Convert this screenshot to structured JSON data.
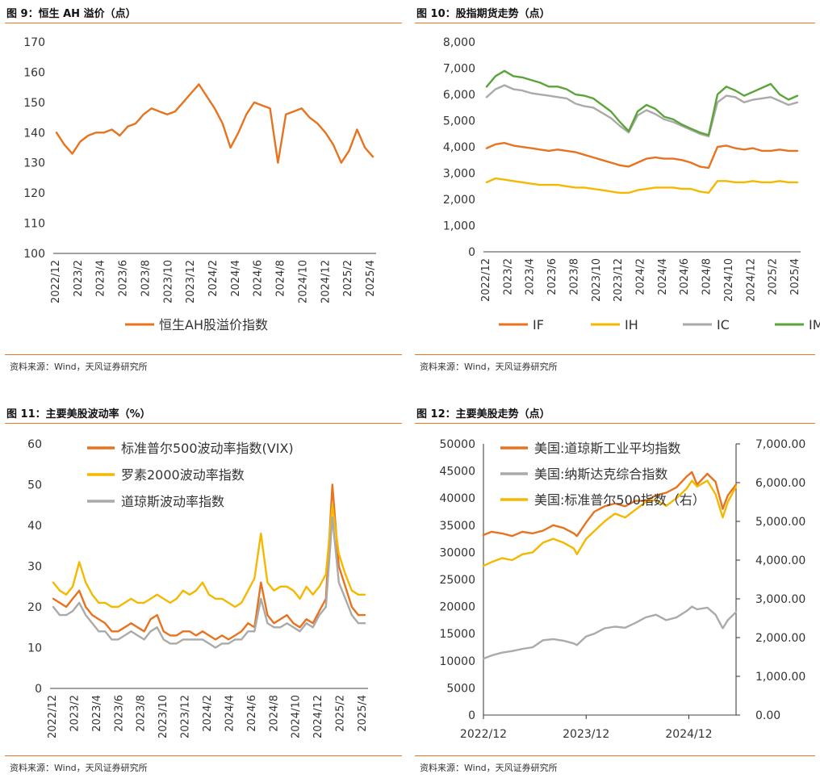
{
  "source_text": "资料来源：Wind，天风证券研究所",
  "chart_data": [
    {
      "type": "line",
      "title": "图 9：恒生 AH 溢价（点）",
      "ylim": [
        100,
        170
      ],
      "yticks": [
        "100",
        "110",
        "120",
        "130",
        "140",
        "150",
        "160",
        "170"
      ],
      "xticks": [
        "2022/12",
        "2023/2",
        "2023/4",
        "2023/6",
        "2023/8",
        "2023/10",
        "2023/12",
        "2024/2",
        "2024/4",
        "2024/6",
        "2024/8",
        "2024/10",
        "2024/12",
        "2025/2",
        "2025/4"
      ],
      "series": [
        {
          "name": "恒生AH股溢价指数",
          "color": "#e8731f",
          "values": [
            140,
            136,
            133,
            137,
            139,
            140,
            140,
            141,
            139,
            142,
            143,
            146,
            148,
            147,
            146,
            147,
            150,
            153,
            156,
            152,
            148,
            143,
            135,
            140,
            146,
            150,
            149,
            148,
            130,
            146,
            147,
            148,
            145,
            143,
            140,
            136,
            130,
            134,
            141,
            135,
            132
          ]
        }
      ]
    },
    {
      "type": "line",
      "title": "图 10：股指期货走势（点）",
      "ylim": [
        0,
        8000
      ],
      "yticks": [
        "0",
        "1,000",
        "2,000",
        "3,000",
        "4,000",
        "5,000",
        "6,000",
        "7,000",
        "8,000"
      ],
      "xticks": [
        "2022/12",
        "2023/2",
        "2023/4",
        "2023/6",
        "2023/8",
        "2023/10",
        "2023/12",
        "2024/2",
        "2024/4",
        "2024/6",
        "2024/8",
        "2024/10",
        "2024/12",
        "2025/2",
        "2025/4"
      ],
      "series": [
        {
          "name": "IF",
          "color": "#e8731f",
          "values": [
            3950,
            4100,
            4150,
            4050,
            4000,
            3950,
            3900,
            3850,
            3900,
            3850,
            3800,
            3700,
            3600,
            3500,
            3400,
            3300,
            3250,
            3400,
            3550,
            3600,
            3550,
            3550,
            3500,
            3400,
            3250,
            3200,
            4000,
            4050,
            3950,
            3900,
            3950,
            3850,
            3850,
            3900,
            3850,
            3850
          ]
        },
        {
          "name": "IH",
          "color": "#f5b800",
          "values": [
            2650,
            2800,
            2750,
            2700,
            2650,
            2600,
            2550,
            2550,
            2550,
            2500,
            2450,
            2450,
            2400,
            2350,
            2300,
            2250,
            2250,
            2350,
            2400,
            2450,
            2450,
            2450,
            2400,
            2400,
            2300,
            2250,
            2700,
            2700,
            2650,
            2650,
            2700,
            2650,
            2650,
            2700,
            2650,
            2650
          ]
        },
        {
          "name": "IC",
          "color": "#aaaaaa",
          "values": [
            5900,
            6200,
            6350,
            6200,
            6150,
            6050,
            6000,
            5950,
            5900,
            5850,
            5650,
            5550,
            5500,
            5300,
            5100,
            4800,
            4550,
            5200,
            5400,
            5250,
            5050,
            4950,
            4800,
            4650,
            4500,
            4400,
            5700,
            5950,
            5900,
            5700,
            5800,
            5850,
            5900,
            5750,
            5600,
            5700
          ]
        },
        {
          "name": "IM",
          "color": "#5aa43a",
          "values": [
            6300,
            6700,
            6900,
            6700,
            6650,
            6550,
            6450,
            6300,
            6300,
            6200,
            6000,
            5950,
            5850,
            5600,
            5350,
            4950,
            4600,
            5350,
            5600,
            5450,
            5150,
            5050,
            4850,
            4700,
            4550,
            4450,
            6000,
            6300,
            6150,
            5950,
            6100,
            6250,
            6400,
            6000,
            5800,
            5950
          ]
        }
      ]
    },
    {
      "type": "line",
      "title": "图 11：主要美股波动率（%）",
      "ylim": [
        0,
        60
      ],
      "yticks": [
        "0",
        "10",
        "20",
        "30",
        "40",
        "50",
        "60"
      ],
      "xticks": [
        "2022/12",
        "2023/2",
        "2023/4",
        "2023/6",
        "2023/8",
        "2023/10",
        "2023/12",
        "2024/2",
        "2024/4",
        "2024/6",
        "2024/8",
        "2024/10",
        "2024/12",
        "2025/2",
        "2025/4"
      ],
      "series": [
        {
          "name": "标准普尔500波动率指数(VIX)",
          "color": "#e8731f",
          "values": [
            22,
            21,
            20,
            22,
            24,
            20,
            18,
            17,
            16,
            14,
            14,
            15,
            16,
            15,
            14,
            17,
            18,
            14,
            13,
            13,
            14,
            14,
            13,
            14,
            13,
            12,
            13,
            12,
            13,
            14,
            16,
            15,
            26,
            18,
            16,
            17,
            18,
            16,
            15,
            17,
            16,
            19,
            22,
            50,
            30,
            25,
            20,
            18,
            18
          ]
        },
        {
          "name": "罗素2000波动率指数",
          "color": "#f5b800",
          "values": [
            26,
            24,
            23,
            25,
            31,
            26,
            23,
            21,
            21,
            20,
            20,
            21,
            22,
            21,
            21,
            22,
            23,
            22,
            21,
            22,
            24,
            23,
            24,
            26,
            23,
            22,
            22,
            21,
            20,
            21,
            24,
            27,
            38,
            26,
            24,
            25,
            25,
            24,
            22,
            25,
            23,
            25,
            28,
            45,
            33,
            28,
            24,
            23,
            23
          ]
        },
        {
          "name": "道琼斯波动率指数",
          "color": "#aaaaaa",
          "values": [
            20,
            18,
            18,
            19,
            21,
            18,
            16,
            14,
            14,
            12,
            12,
            13,
            14,
            13,
            12,
            14,
            15,
            12,
            11,
            11,
            12,
            12,
            12,
            12,
            11,
            10,
            11,
            11,
            12,
            12,
            14,
            14,
            22,
            16,
            15,
            15,
            16,
            15,
            14,
            16,
            15,
            18,
            20,
            42,
            26,
            22,
            18,
            16,
            16
          ]
        }
      ]
    },
    {
      "type": "line",
      "title": "图 12：主要美股走势（点）",
      "ylim": [
        0,
        50000
      ],
      "ylim_right": [
        0,
        7000
      ],
      "yticks": [
        "0",
        "5000",
        "10000",
        "15000",
        "20000",
        "25000",
        "30000",
        "35000",
        "40000",
        "45000",
        "50000"
      ],
      "yticks_right": [
        "0.00",
        "1,000.00",
        "2,000.00",
        "3,000.00",
        "4,000.00",
        "5,000.00",
        "6,000.00",
        "7,000.00"
      ],
      "xticks": [
        "2022/12",
        "2023/12",
        "2024/12"
      ],
      "x_range": [
        2022.92,
        2025.38
      ],
      "series": [
        {
          "name": "美国:道琼斯工业平均指数",
          "color": "#e8731f",
          "axis": "left",
          "x": [
            2022.92,
            2023.0,
            2023.1,
            2023.2,
            2023.3,
            2023.4,
            2023.5,
            2023.6,
            2023.7,
            2023.8,
            2023.83,
            2023.92,
            2024.0,
            2024.1,
            2024.2,
            2024.3,
            2024.4,
            2024.5,
            2024.6,
            2024.7,
            2024.8,
            2024.9,
            2024.95,
            2025.0,
            2025.1,
            2025.18,
            2025.25,
            2025.3,
            2025.38
          ],
          "values": [
            33200,
            33800,
            33500,
            33000,
            33800,
            33500,
            34000,
            35000,
            34500,
            33500,
            33000,
            35500,
            37500,
            38500,
            39000,
            38500,
            39500,
            39500,
            40500,
            41000,
            42000,
            44000,
            44800,
            42500,
            44500,
            43000,
            38000,
            40500,
            42500
          ]
        },
        {
          "name": "美国:纳斯达克综合指数",
          "color": "#aaaaaa",
          "axis": "left",
          "x": [
            2022.92,
            2023.0,
            2023.1,
            2023.2,
            2023.3,
            2023.4,
            2023.5,
            2023.6,
            2023.7,
            2023.8,
            2023.83,
            2023.92,
            2024.0,
            2024.1,
            2024.2,
            2024.3,
            2024.4,
            2024.5,
            2024.6,
            2024.7,
            2024.8,
            2024.9,
            2024.95,
            2025.0,
            2025.1,
            2025.18,
            2025.25,
            2025.3,
            2025.38
          ],
          "values": [
            10400,
            11000,
            11500,
            11800,
            12200,
            12500,
            13800,
            14000,
            13700,
            13200,
            12900,
            14500,
            15000,
            16000,
            16300,
            16100,
            17000,
            18000,
            18500,
            17500,
            18000,
            19200,
            20000,
            19500,
            19800,
            18500,
            16000,
            17500,
            19000
          ]
        },
        {
          "name": "美国:标准普尔500指数（右）",
          "color": "#f5b800",
          "axis": "right",
          "x": [
            2022.92,
            2023.0,
            2023.1,
            2023.2,
            2023.3,
            2023.4,
            2023.5,
            2023.6,
            2023.7,
            2023.8,
            2023.83,
            2023.92,
            2024.0,
            2024.1,
            2024.2,
            2024.3,
            2024.4,
            2024.5,
            2024.6,
            2024.7,
            2024.8,
            2024.9,
            2024.95,
            2025.0,
            2025.1,
            2025.18,
            2025.25,
            2025.3,
            2025.38
          ],
          "values": [
            3850,
            3950,
            4050,
            4000,
            4150,
            4200,
            4450,
            4550,
            4450,
            4300,
            4150,
            4550,
            4750,
            5000,
            5200,
            5100,
            5300,
            5500,
            5550,
            5400,
            5600,
            5850,
            6050,
            5900,
            6050,
            5700,
            5100,
            5500,
            5900
          ]
        }
      ]
    }
  ]
}
